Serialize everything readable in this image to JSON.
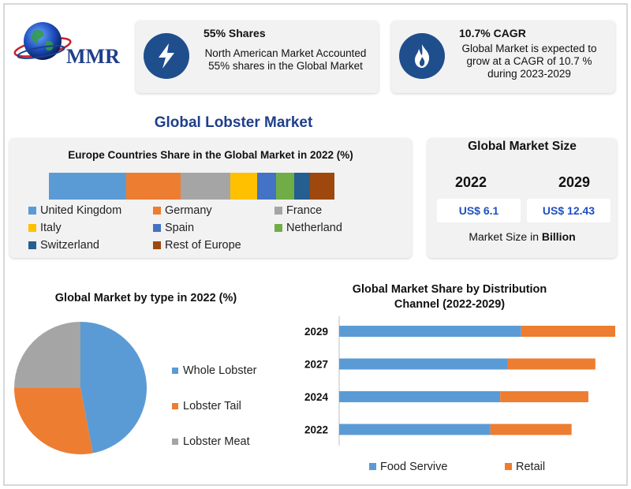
{
  "logo": {
    "text": "MMR"
  },
  "cards": {
    "shares": {
      "title": "55% Shares",
      "text_line1": "North American Market Accounted",
      "text_line2": "55% shares in the Global Market",
      "icon": "lightning-icon"
    },
    "cagr": {
      "title": "10.7% CAGR",
      "text_line1": "Global Market is expected to",
      "text_line2": "grow at a CAGR of 10.7 %",
      "text_line3": "during 2023-2029",
      "icon": "flame-icon"
    }
  },
  "main_title": "Global Lobster Market",
  "market_size": {
    "title": "Global Market Size",
    "years": [
      "2022",
      "2029"
    ],
    "values": [
      "US$ 6.1",
      "US$ 12.43"
    ],
    "note_prefix": "Market Size in ",
    "note_unit": "Billion"
  },
  "colors": {
    "blue": "#5b9bd5",
    "orange": "#ed7d31",
    "gray": "#a5a5a5",
    "yellow": "#ffc000",
    "royal": "#4472c4",
    "green": "#70ad47",
    "navy": "#255e91",
    "brown": "#9e480e",
    "title_blue": "#1f3f8a",
    "value_blue": "#1f4fbf"
  },
  "chart_data": [
    {
      "type": "bar",
      "orientation": "horizontal-stacked-100",
      "title": "Europe Countries Share in the Global Market in 2022 (%)",
      "series": [
        {
          "name": "United Kingdom",
          "values": [
            27
          ],
          "color": "#5b9bd5"
        },
        {
          "name": "Germany",
          "values": [
            19
          ],
          "color": "#ed7d31"
        },
        {
          "name": "France",
          "values": [
            17.5
          ],
          "color": "#a5a5a5"
        },
        {
          "name": "Italy",
          "values": [
            9.5
          ],
          "color": "#ffc000"
        },
        {
          "name": "Spain",
          "values": [
            6.5
          ],
          "color": "#4472c4"
        },
        {
          "name": "Netherland",
          "values": [
            6.5
          ],
          "color": "#70ad47"
        },
        {
          "name": "Switzerland",
          "values": [
            5.5
          ],
          "color": "#255e91"
        },
        {
          "name": "Rest of Europe",
          "values": [
            8.5
          ],
          "color": "#9e480e"
        }
      ],
      "legend": "bottom"
    },
    {
      "type": "pie",
      "title": "Global Market by type in 2022 (%)",
      "categories": [
        "Whole Lobster",
        "Lobster Tail",
        "Lobster Meat"
      ],
      "values": [
        47,
        28,
        25
      ],
      "colors": [
        "#5b9bd5",
        "#ed7d31",
        "#a5a5a5"
      ],
      "legend": "right"
    },
    {
      "type": "bar",
      "orientation": "horizontal-stacked",
      "title_line1": "Global Market Share by Distribution",
      "title_line2": "Channel (2022-2029)",
      "categories": [
        "2029",
        "2027",
        "2024",
        "2022"
      ],
      "series": [
        {
          "name": "Food Servive",
          "values": [
            65,
            60,
            57.5,
            54
          ],
          "color": "#5b9bd5"
        },
        {
          "name": "Retail",
          "values": [
            34,
            31.5,
            31.5,
            29
          ],
          "color": "#ed7d31"
        }
      ],
      "xlim": [
        0,
        100
      ],
      "grid": false,
      "legend": "bottom"
    }
  ]
}
